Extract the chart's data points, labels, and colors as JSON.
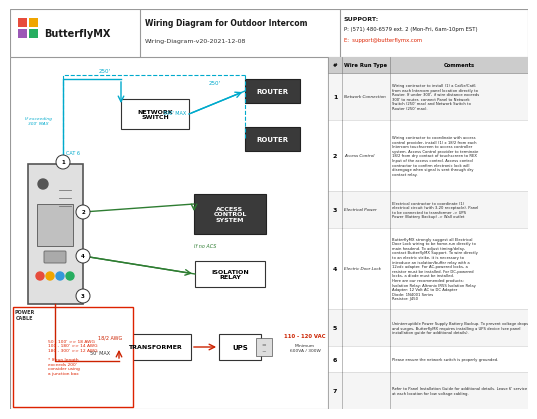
{
  "title": "Wiring Diagram for Outdoor Intercom",
  "subtitle": "Wiring-Diagram-v20-2021-12-08",
  "support_title": "SUPPORT:",
  "support_phone": "P: (571) 480-6579 ext. 2 (Mon-Fri, 6am-10pm EST)",
  "support_email": "E:  support@butterflymx.com",
  "bg_color": "#ffffff",
  "cyan_color": "#00aacc",
  "green_color": "#2e7d32",
  "red_color": "#cc2200",
  "wire_rows": [
    {
      "num": "1",
      "type": "Network Connection",
      "comment": "Wiring contractor to install (1) a Cat5e/Cat6\nfrom each Intercom panel location directly to\nRouter. If under 300', if wire distance exceeds\n300' to router, connect Panel to Network\nSwitch (250' max) and Network Switch to\nRouter (250' max)."
    },
    {
      "num": "2",
      "type": "Access Control",
      "comment": "Wiring contractor to coordinate with access\ncontrol provider, install (1) x 18/2 from each\nIntercom touchscreen to access controller\nsystem. Access Control provider to terminate\n18/2 from dry contact of touchscreen to REX\nInput of the access control. Access control\ncontractor to confirm electronic lock will\ndisengage when signal is sent through dry\ncontact relay."
    },
    {
      "num": "3",
      "type": "Electrical Power",
      "comment": "Electrical contractor to coordinate (1)\nelectrical circuit (with 3-20 receptacle). Panel\nto be connected to transformer -> UPS\nPower (Battery Backup) -> Wall outlet"
    },
    {
      "num": "4",
      "type": "Electric Door Lock",
      "comment": "ButterflyMX strongly suggest all Electrical\nDoor Lock wiring to be home-run directly to\nmain headend. To adjust timing/delay,\ncontact ButterflyMX Support. To wire directly\nto an electric strike, it is necessary to\nintroduce an isolation/buffer relay with a\n12vdc adapter. For AC-powered locks, a\nresistor must be installed. For DC-powered\nlocks, a diode must be installed.\nHere are our recommended products:\nIsolation Relay: Altronix IR5S Isolation Relay\nAdapter: 12 Volt AC to DC Adapter\nDiode: 1N4001 Series\nResistor: J450"
    },
    {
      "num": "5",
      "type": "",
      "comment": "Uninterruptible Power Supply Battery Backup. To prevent voltage drops\nand surges, ButterflyMX requires installing a UPS device (see panel\ninstallation guide for additional details)."
    },
    {
      "num": "6",
      "type": "",
      "comment": "Please ensure the network switch is properly grounded."
    },
    {
      "num": "7",
      "type": "",
      "comment": "Refer to Panel Installation Guide for additional details. Leave 6' service loop\nat each location for low voltage cabling."
    }
  ],
  "awg_note": "50 - 100' >> 18 AWG\n100 - 180' >> 14 AWG\n180 - 300' >> 12 AWG\n\n* If run length\nexceeds 200'\nconsider using\na junction box"
}
